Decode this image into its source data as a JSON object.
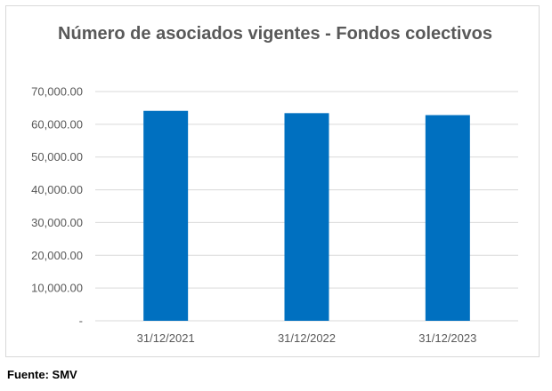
{
  "chart_data": {
    "type": "bar",
    "title": "Número de asociados vigentes - Fondos colectivos",
    "categories": [
      "31/12/2021",
      "31/12/2022",
      "31/12/2023"
    ],
    "values": [
      64100,
      63400,
      62800
    ],
    "ylim": [
      0,
      70000
    ],
    "yticks": [
      0,
      10000,
      20000,
      30000,
      40000,
      50000,
      60000,
      70000
    ],
    "ytick_labels": [
      "-",
      "10,000.00",
      "20,000.00",
      "30,000.00",
      "40,000.00",
      "50,000.00",
      "60,000.00",
      "70,000.00"
    ],
    "bar_color": "#0070C0",
    "grid": true,
    "legend": "none"
  },
  "source": "Fuente: SMV"
}
